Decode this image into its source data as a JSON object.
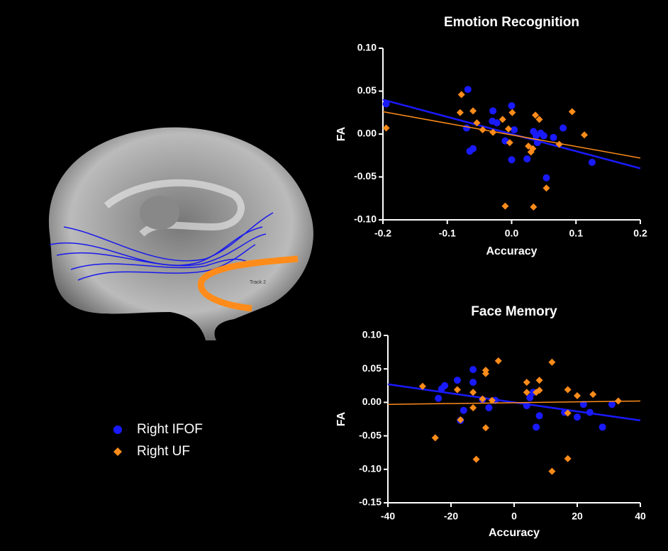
{
  "chart_data": [
    {
      "type": "scatter",
      "title": "Emotion Recognition",
      "x_label": "Accuracy",
      "y_label": "FA",
      "xlim": [
        -0.2,
        0.2
      ],
      "xticks": [
        -0.2,
        -0.1,
        {
          "value": 0,
          "label": "0.0"
        },
        0.1,
        0.2
      ],
      "ylim": [
        -0.1,
        0.1
      ],
      "yticks": [
        {
          "value": -0.1,
          "label": "-0.10"
        },
        -0.05,
        {
          "value": 0,
          "label": "0.00"
        },
        0.05,
        {
          "value": 0.1,
          "label": "0.10"
        }
      ],
      "grid": false,
      "series": [
        {
          "name": "Right IFOF",
          "color": "#1a1aff",
          "marker": "circle",
          "fit": [
            0.04,
            -0.04
          ],
          "x": [
            -0.195,
            -0.068,
            -0.07,
            -0.065,
            -0.06,
            -0.029,
            -0.03,
            -0.023,
            -0.01,
            0,
            0,
            0.004,
            0.024,
            0.034,
            0.038,
            0.04,
            0.045,
            0.05,
            0.054,
            0.065,
            0.08,
            0.125
          ],
          "values": [
            0.035,
            0.052,
            0.007,
            -0.02,
            -0.017,
            0.027,
            0.015,
            0.013,
            -0.008,
            0.033,
            -0.03,
            0.005,
            -0.029,
            0.003,
            -0.002,
            -0.01,
            0.001,
            -0.002,
            -0.051,
            -0.004,
            0.007,
            -0.033
          ]
        },
        {
          "name": "Right UF",
          "color": "#ff8c1a",
          "marker": "diamond",
          "fit": [
            0.026,
            -0.028
          ],
          "x": [
            -0.195,
            -0.08,
            -0.078,
            -0.06,
            -0.054,
            -0.045,
            -0.029,
            -0.014,
            -0.005,
            0.001,
            -0.003,
            -0.01,
            0.026,
            0.03,
            0.033,
            0.037,
            0.043,
            0.034,
            0.054,
            0.074,
            0.094,
            0.113
          ],
          "values": [
            0.007,
            0.025,
            0.046,
            0.027,
            0.013,
            0.005,
            0.002,
            0.017,
            0.006,
            0.025,
            -0.01,
            -0.084,
            -0.014,
            -0.021,
            -0.017,
            0.022,
            0.017,
            -0.085,
            -0.063,
            -0.012,
            0.026,
            -0.001
          ]
        }
      ]
    },
    {
      "type": "scatter",
      "title": "Face Memory",
      "x_label": "Accuracy",
      "y_label": "FA",
      "xlim": [
        -40,
        40
      ],
      "xticks": [
        -40,
        -20,
        0,
        20,
        40
      ],
      "ylim": [
        -0.15,
        0.1
      ],
      "yticks": [
        -0.15,
        {
          "value": -0.1,
          "label": "-0.10"
        },
        -0.05,
        {
          "value": 0,
          "label": "0.00"
        },
        0.05,
        {
          "value": 0.1,
          "label": "0.10"
        }
      ],
      "grid": false,
      "series": [
        {
          "color": "#1a1aff",
          "marker": "circle",
          "fit": [
            0.027,
            -0.027
          ],
          "x": [
            -23,
            -22,
            -24,
            -18,
            -16,
            -17,
            -13,
            -13,
            -10,
            -8,
            -6,
            4,
            5,
            6,
            7,
            8,
            16,
            20,
            22,
            24,
            28,
            31
          ],
          "values": [
            0.02,
            0.025,
            0.006,
            0.033,
            -0.012,
            -0.027,
            0.049,
            0.03,
            0.004,
            -0.008,
            0.003,
            -0.005,
            0.007,
            0.015,
            -0.037,
            -0.02,
            -0.015,
            -0.022,
            -0.003,
            -0.015,
            -0.037,
            -0.003
          ]
        },
        {
          "color": "#ff8c1a",
          "marker": "diamond",
          "fit": [
            -0.003,
            0.002
          ],
          "x": [
            -29,
            -25,
            -18,
            -17,
            -13,
            -12,
            -13,
            -10,
            -9,
            -9,
            -9,
            -5,
            -7,
            4,
            4,
            7,
            8,
            8,
            12,
            12,
            17,
            17,
            17,
            20,
            25,
            33
          ],
          "values": [
            0.024,
            -0.053,
            0.019,
            -0.026,
            0.015,
            -0.085,
            -0.008,
            0.005,
            -0.038,
            0.043,
            0.048,
            0.062,
            0.003,
            0.03,
            0.015,
            0.015,
            0.033,
            0.018,
            0.06,
            -0.103,
            0.019,
            -0.016,
            -0.084,
            0.01,
            0.012,
            0.002
          ]
        }
      ]
    }
  ],
  "image": {
    "label": "Track 2"
  }
}
